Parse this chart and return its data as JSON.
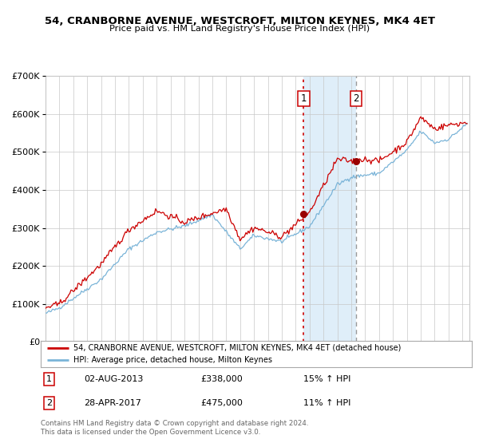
{
  "title": "54, CRANBORNE AVENUE, WESTCROFT, MILTON KEYNES, MK4 4ET",
  "subtitle": "Price paid vs. HM Land Registry's House Price Index (HPI)",
  "legend_line1": "54, CRANBORNE AVENUE, WESTCROFT, MILTON KEYNES, MK4 4ET (detached house)",
  "legend_line2": "HPI: Average price, detached house, Milton Keynes",
  "annotation1_date": "02-AUG-2013",
  "annotation1_price": "£338,000",
  "annotation1_hpi": "15% ↑ HPI",
  "annotation2_date": "28-APR-2017",
  "annotation2_price": "£475,000",
  "annotation2_hpi": "11% ↑ HPI",
  "footer": "Contains HM Land Registry data © Crown copyright and database right 2024.\nThis data is licensed under the Open Government Licence v3.0.",
  "hpi_color": "#7ab4d8",
  "price_color": "#cc0000",
  "marker_color": "#990000",
  "background_color": "#ffffff",
  "grid_color": "#c8c8c8",
  "shade_color": "#d8eaf8",
  "vline1_color": "#cc0000",
  "vline2_color": "#999999",
  "ylim": [
    0,
    700000
  ],
  "xlim_start": 1995.0,
  "xlim_end": 2025.5,
  "purchase1_year": 2013.58,
  "purchase2_year": 2017.33,
  "purchase1_value": 338000,
  "purchase2_value": 475000
}
